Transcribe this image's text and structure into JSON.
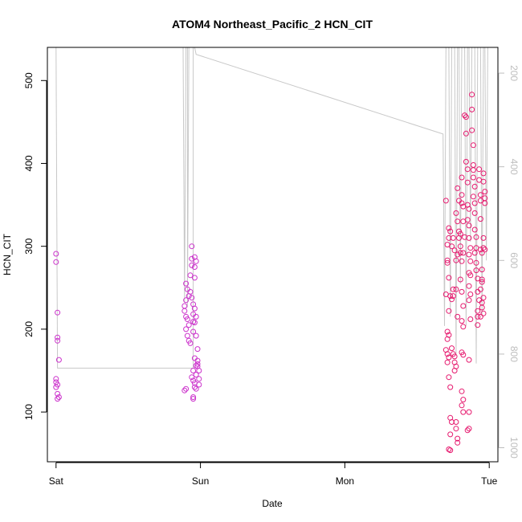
{
  "chart_data": {
    "type": "scatter",
    "title": "ATOM4 Northeast_Pacific_2 HCN_CIT",
    "xlabel": "Date",
    "ylabel": "HCN_CIT",
    "x_ticks": [
      {
        "label": "Sat",
        "value": 0
      },
      {
        "label": "Sun",
        "value": 1
      },
      {
        "label": "Mon",
        "value": 2
      },
      {
        "label": "Tue",
        "value": 3
      }
    ],
    "xlim": [
      -0.06,
      3.06
    ],
    "ylim": [
      40,
      540
    ],
    "y_ticks": [
      100,
      200,
      300,
      400,
      500
    ],
    "right_axis": {
      "ticks": [
        200,
        400,
        600,
        800,
        1000
      ],
      "lim_top": 145,
      "lim_bottom": 1030,
      "color": "#bdbdbd"
    },
    "marker_colors": [
      "#cc33cc",
      "#e6196e"
    ],
    "line_color": "#c8c8c8",
    "grid": false,
    "legend": "none",
    "series": [
      {
        "name": "",
        "style": "open-circle",
        "points": [
          [
            0.0,
            291
          ],
          [
            0.0,
            281
          ],
          [
            0.01,
            220
          ],
          [
            0.01,
            190
          ],
          [
            0.01,
            186
          ],
          [
            0.02,
            163
          ],
          [
            0.0,
            140
          ],
          [
            0.0,
            136
          ],
          [
            0.01,
            133
          ],
          [
            0.0,
            130
          ],
          [
            0.01,
            122
          ],
          [
            0.02,
            118
          ],
          [
            0.01,
            116
          ],
          [
            0.89,
            228
          ],
          [
            0.89,
            222
          ],
          [
            0.9,
            235
          ],
          [
            0.9,
            255
          ],
          [
            0.91,
            248
          ],
          [
            0.9,
            215
          ],
          [
            0.9,
            200
          ],
          [
            0.91,
            192
          ],
          [
            0.91,
            212
          ],
          [
            0.92,
            205
          ],
          [
            0.92,
            240
          ],
          [
            0.92,
            186
          ],
          [
            0.93,
            183
          ],
          [
            0.93,
            265
          ],
          [
            0.93,
            245
          ],
          [
            0.94,
            238
          ],
          [
            0.94,
            300
          ],
          [
            0.94,
            285
          ],
          [
            0.94,
            277
          ],
          [
            0.95,
            230
          ],
          [
            0.95,
            218
          ],
          [
            0.95,
            209
          ],
          [
            0.95,
            197
          ],
          [
            0.96,
            208
          ],
          [
            0.96,
            225
          ],
          [
            0.96,
            275
          ],
          [
            0.96,
            262
          ],
          [
            0.96,
            287
          ],
          [
            0.97,
            282
          ],
          [
            0.97,
            215
          ],
          [
            0.97,
            192
          ],
          [
            0.96,
            165
          ],
          [
            0.95,
            150
          ],
          [
            0.94,
            142
          ],
          [
            0.95,
            138
          ],
          [
            0.96,
            135
          ],
          [
            0.96,
            130
          ],
          [
            0.97,
            128
          ],
          [
            0.97,
            145
          ],
          [
            0.97,
            156
          ],
          [
            0.98,
            158
          ],
          [
            0.98,
            162
          ],
          [
            0.98,
            155
          ],
          [
            0.99,
            150
          ],
          [
            0.99,
            140
          ],
          [
            0.99,
            133
          ],
          [
            0.95,
            118
          ],
          [
            0.95,
            116
          ],
          [
            0.98,
            176
          ],
          [
            0.89,
            126
          ],
          [
            0.9,
            128
          ]
        ]
      },
      {
        "name": "",
        "style": "open-circle",
        "points": [
          [
            2.7,
            355
          ],
          [
            2.71,
            302
          ],
          [
            2.71,
            283
          ],
          [
            2.72,
            310
          ],
          [
            2.72,
            322
          ],
          [
            2.73,
            318
          ],
          [
            2.71,
            280
          ],
          [
            2.72,
            262
          ],
          [
            2.7,
            242
          ],
          [
            2.73,
            240
          ],
          [
            2.72,
            222
          ],
          [
            2.71,
            197
          ],
          [
            2.72,
            193
          ],
          [
            2.71,
            188
          ],
          [
            2.7,
            175
          ],
          [
            2.71,
            170
          ],
          [
            2.72,
            166
          ],
          [
            2.71,
            160
          ],
          [
            2.72,
            142
          ],
          [
            2.73,
            130
          ],
          [
            2.73,
            93
          ],
          [
            2.74,
            88
          ],
          [
            2.73,
            73
          ],
          [
            2.72,
            55
          ],
          [
            2.73,
            54
          ],
          [
            2.75,
            248
          ],
          [
            2.74,
            236
          ],
          [
            2.74,
            300
          ],
          [
            2.75,
            310
          ],
          [
            2.76,
            295
          ],
          [
            2.75,
            240
          ],
          [
            2.74,
            177
          ],
          [
            2.75,
            170
          ],
          [
            2.76,
            167
          ],
          [
            2.76,
            160
          ],
          [
            2.77,
            155
          ],
          [
            2.76,
            150
          ],
          [
            2.77,
            248
          ],
          [
            2.77,
            283
          ],
          [
            2.78,
            290
          ],
          [
            2.77,
            340
          ],
          [
            2.78,
            330
          ],
          [
            2.78,
            370
          ],
          [
            2.79,
            355
          ],
          [
            2.79,
            318
          ],
          [
            2.78,
            215
          ],
          [
            2.77,
            88
          ],
          [
            2.78,
            68
          ],
          [
            2.78,
            63
          ],
          [
            2.77,
            80
          ],
          [
            2.79,
            310
          ],
          [
            2.8,
            315
          ],
          [
            2.8,
            300
          ],
          [
            2.8,
            292
          ],
          [
            2.81,
            383
          ],
          [
            2.81,
            362
          ],
          [
            2.81,
            352
          ],
          [
            2.82,
            348
          ],
          [
            2.82,
            330
          ],
          [
            2.83,
            311
          ],
          [
            2.82,
            292
          ],
          [
            2.81,
            282
          ],
          [
            2.8,
            260
          ],
          [
            2.81,
            245
          ],
          [
            2.82,
            228
          ],
          [
            2.81,
            210
          ],
          [
            2.82,
            203
          ],
          [
            2.81,
            172
          ],
          [
            2.82,
            169
          ],
          [
            2.81,
            125
          ],
          [
            2.82,
            115
          ],
          [
            2.81,
            108
          ],
          [
            2.82,
            100
          ],
          [
            2.83,
            458
          ],
          [
            2.84,
            456
          ],
          [
            2.84,
            436
          ],
          [
            2.84,
            402
          ],
          [
            2.85,
            393
          ],
          [
            2.85,
            377
          ],
          [
            2.85,
            350
          ],
          [
            2.86,
            345
          ],
          [
            2.85,
            332
          ],
          [
            2.86,
            325
          ],
          [
            2.86,
            310
          ],
          [
            2.87,
            298
          ],
          [
            2.86,
            290
          ],
          [
            2.87,
            282
          ],
          [
            2.86,
            268
          ],
          [
            2.87,
            265
          ],
          [
            2.86,
            252
          ],
          [
            2.87,
            242
          ],
          [
            2.86,
            235
          ],
          [
            2.87,
            212
          ],
          [
            2.86,
            163
          ],
          [
            2.86,
            100
          ],
          [
            2.86,
            80
          ],
          [
            2.85,
            78
          ],
          [
            2.88,
            483
          ],
          [
            2.88,
            465
          ],
          [
            2.88,
            440
          ],
          [
            2.89,
            422
          ],
          [
            2.89,
            398
          ],
          [
            2.89,
            392
          ],
          [
            2.89,
            383
          ],
          [
            2.9,
            372
          ],
          [
            2.89,
            360
          ],
          [
            2.9,
            352
          ],
          [
            2.9,
            340
          ],
          [
            2.9,
            320
          ],
          [
            2.91,
            311
          ],
          [
            2.91,
            298
          ],
          [
            2.9,
            292
          ],
          [
            2.91,
            280
          ],
          [
            2.91,
            271
          ],
          [
            2.92,
            261
          ],
          [
            2.92,
            245
          ],
          [
            2.92,
            222
          ],
          [
            2.92,
            215
          ],
          [
            2.92,
            205
          ],
          [
            2.93,
            393
          ],
          [
            2.93,
            380
          ],
          [
            2.94,
            362
          ],
          [
            2.94,
            355
          ],
          [
            2.94,
            333
          ],
          [
            2.94,
            296
          ],
          [
            2.95,
            292
          ],
          [
            2.95,
            272
          ],
          [
            2.95,
            257
          ],
          [
            2.95,
            232
          ],
          [
            2.95,
            226
          ],
          [
            2.96,
            219
          ],
          [
            2.96,
            388
          ],
          [
            2.96,
            378
          ],
          [
            2.97,
            366
          ],
          [
            2.97,
            358
          ],
          [
            2.97,
            352
          ],
          [
            2.96,
            310
          ],
          [
            2.96,
            298
          ],
          [
            2.97,
            296
          ],
          [
            2.95,
            260
          ],
          [
            2.96,
            238
          ],
          [
            2.94,
            248
          ],
          [
            2.93,
            235
          ],
          [
            2.94,
            215
          ]
        ]
      }
    ],
    "line_series": {
      "name": "",
      "axis": "right",
      "points": [
        [
          0.0,
          145
        ],
        [
          0.01,
          830
        ],
        [
          0.02,
          830
        ],
        [
          0.94,
          830
        ],
        [
          0.95,
          830
        ],
        [
          0.95,
          145
        ],
        [
          0.88,
          145
        ],
        [
          0.89,
          690
        ],
        [
          0.9,
          145
        ],
        [
          0.91,
          145
        ],
        [
          0.91,
          700
        ],
        [
          0.92,
          145
        ],
        [
          0.96,
          145
        ],
        [
          0.97,
          160
        ],
        [
          2.68,
          330
        ],
        [
          2.69,
          740
        ],
        [
          2.7,
          145
        ],
        [
          2.72,
          145
        ],
        [
          2.73,
          720
        ],
        [
          2.74,
          145
        ],
        [
          2.76,
          145
        ],
        [
          2.77,
          800
        ],
        [
          2.78,
          145
        ],
        [
          2.79,
          145
        ],
        [
          2.8,
          650
        ],
        [
          2.81,
          145
        ],
        [
          2.83,
          145
        ],
        [
          2.84,
          740
        ],
        [
          2.85,
          145
        ],
        [
          2.86,
          145
        ],
        [
          2.87,
          560
        ],
        [
          2.88,
          145
        ],
        [
          2.9,
          145
        ],
        [
          2.91,
          820
        ],
        [
          2.92,
          145
        ],
        [
          2.94,
          145
        ],
        [
          2.95,
          720
        ],
        [
          2.96,
          145
        ],
        [
          2.97,
          145
        ],
        [
          2.98,
          600
        ],
        [
          2.99,
          145
        ]
      ]
    }
  }
}
